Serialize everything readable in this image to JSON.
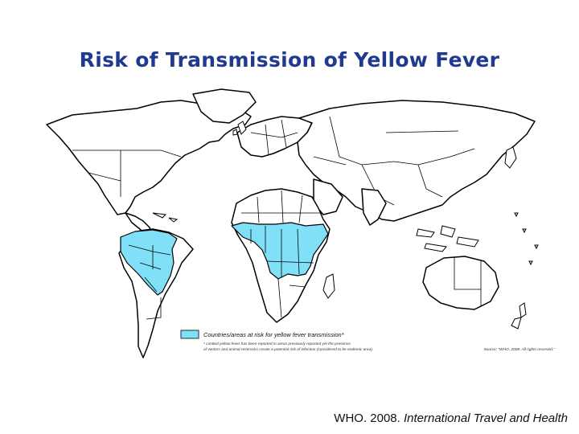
{
  "slide": {
    "title": "Risk of Transmission of Yellow Fever"
  },
  "map": {
    "risk_color": "#7fe0f8",
    "risk_regions": [
      "South America",
      "Sub-Saharan Africa"
    ],
    "legend": {
      "label": "Countries/areas at risk for yellow fever transmission*",
      "footnote_line1": "* Limited yellow fever has been reported in areas previously reported yet the presence",
      "footnote_line2": "of vectors and animal reservoirs create a potential risk of infection (considered to be endemic area).",
      "source": "Source: \"WHO, 2008. All rights reserved.\""
    }
  },
  "citation": {
    "prefix": "WHO. 2008. ",
    "work": "International Travel and Health"
  }
}
